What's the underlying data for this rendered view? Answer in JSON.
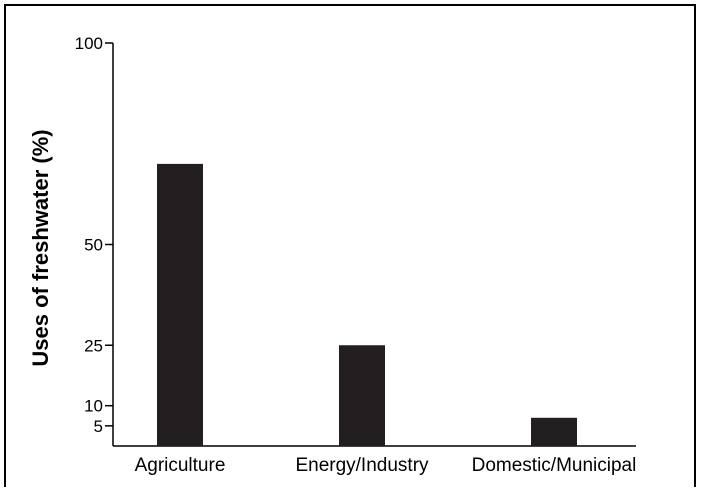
{
  "chart_data": {
    "type": "bar",
    "title": "",
    "xlabel": "",
    "ylabel": "Uses of freshwater (%)",
    "categories": [
      "Agriculture",
      "Energy/Industry",
      "Domestic/Municipal"
    ],
    "values": [
      70,
      25,
      7
    ],
    "y_ticks": [
      5,
      10,
      25,
      50,
      100
    ],
    "ylim": [
      0,
      100
    ],
    "grid": false,
    "bar_color": "#231f20"
  }
}
